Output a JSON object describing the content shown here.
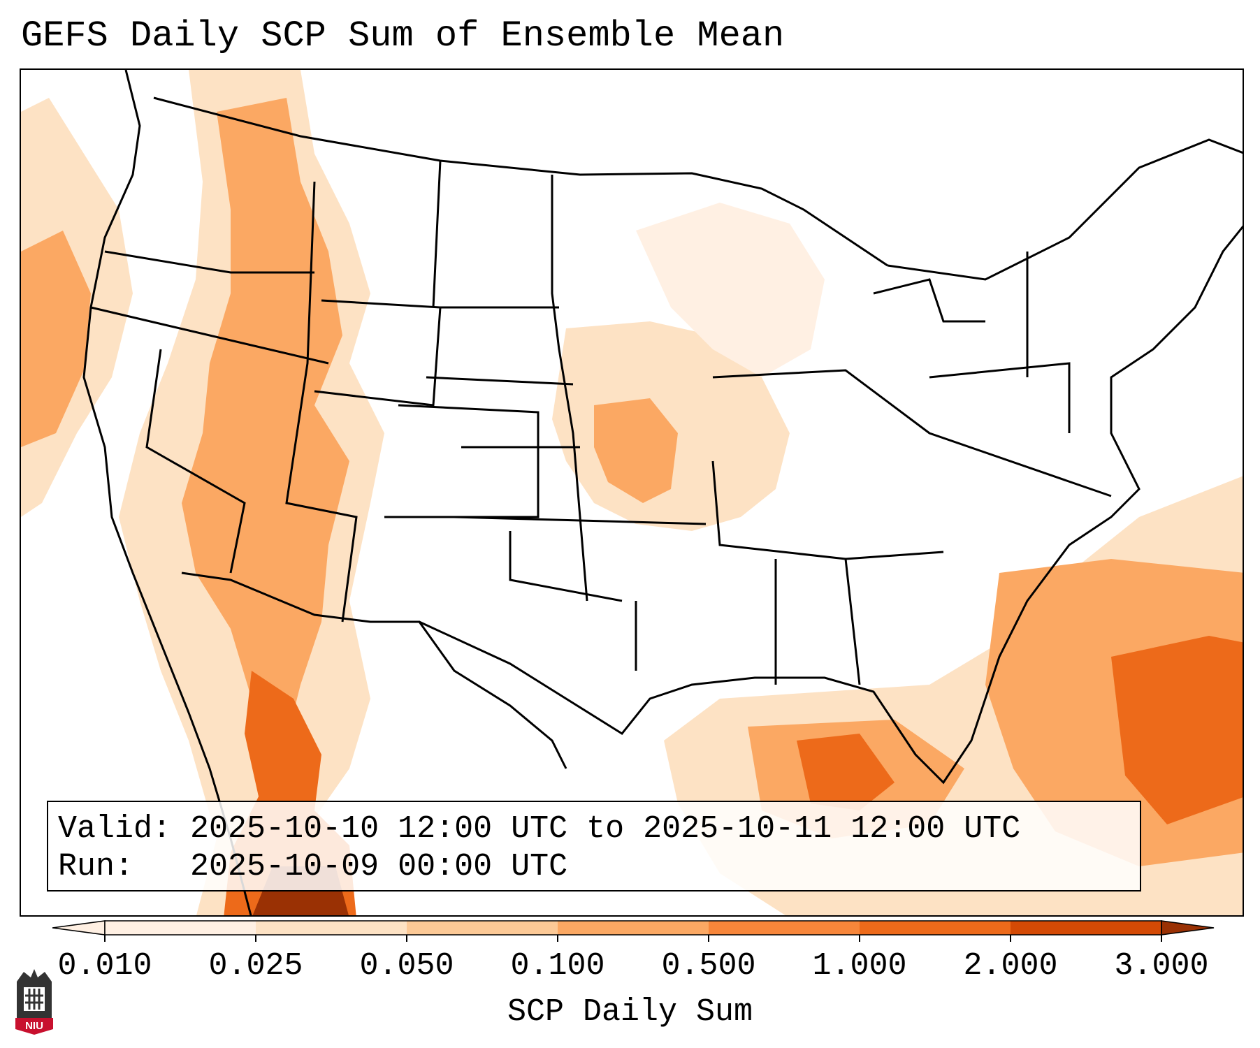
{
  "title": "GEFS Daily SCP Sum of Ensemble Mean",
  "valid": {
    "valid_label": "Valid:",
    "valid_range": "2025-10-10 12:00 UTC to 2025-10-11 12:00 UTC",
    "run_label": "Run:",
    "run_time": "2025-10-09 00:00 UTC"
  },
  "colorbar": {
    "label": "SCP Daily Sum",
    "ticks": [
      "0.010",
      "0.025",
      "0.050",
      "0.100",
      "0.500",
      "1.000",
      "2.000",
      "3.000"
    ],
    "colors": [
      "#fff0e3",
      "#fde2c4",
      "#fcc996",
      "#fba863",
      "#f7863a",
      "#ed6a1a",
      "#d44a05",
      "#9a3104"
    ],
    "extend": "both"
  },
  "logo": {
    "text": "NIU",
    "icon": "niu-logo-icon"
  },
  "map": {
    "region": "CONUS",
    "field": "SCP daily sum"
  }
}
